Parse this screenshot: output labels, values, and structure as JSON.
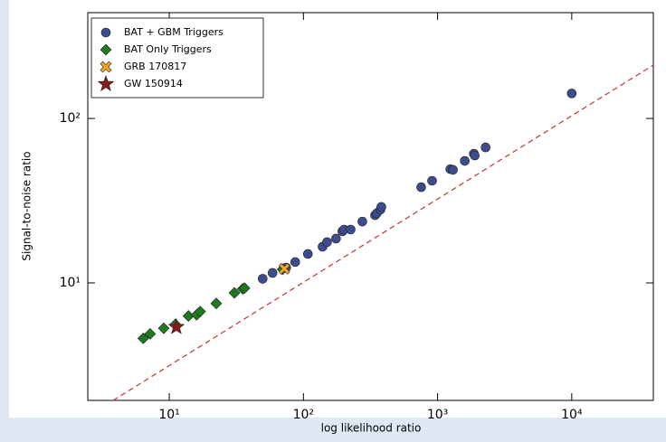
{
  "chart_data": {
    "type": "scatter",
    "x_label": "log likelihood ratio",
    "y_label": "Signal-to-noise ratio",
    "x_log": true,
    "y_log": true,
    "xlim": [
      2.47,
      40550
    ],
    "ylim": [
      1.93,
      440
    ],
    "xticks": [
      {
        "value": 10,
        "label": "10¹"
      },
      {
        "value": 100,
        "label": "10²"
      },
      {
        "value": 1000,
        "label": "10³"
      },
      {
        "value": 10000,
        "label": "10⁴"
      }
    ],
    "yticks": [
      {
        "value": 10,
        "label": "10¹"
      },
      {
        "value": 100,
        "label": "10²"
      }
    ],
    "legend": "upper left",
    "series": [
      {
        "name": "BAT + GBM Triggers",
        "color": "#3d4c8c",
        "marker": "circle",
        "x": [
          49.7,
          58.9,
          74.4,
          86.9,
          108,
          139,
          150,
          175,
          195,
          201,
          225,
          275,
          342,
          352,
          375,
          381,
          755,
          910,
          1244,
          1303,
          1595,
          1864,
          1893,
          2281,
          10000
        ],
        "values": [
          10.6,
          11.5,
          12.4,
          13.4,
          15.0,
          16.6,
          17.7,
          18.6,
          20.6,
          21.1,
          21.1,
          23.6,
          25.8,
          26.5,
          27.9,
          29.0,
          38.2,
          41.8,
          49.2,
          48.7,
          55.2,
          61.1,
          59.5,
          66.7,
          142
        ]
      },
      {
        "name": "BAT Only Triggers",
        "color": "#1f7a1f",
        "marker": "diamond",
        "x": [
          6.4,
          7.2,
          9.1,
          11.1,
          13.9,
          16.0,
          17.0,
          22.4,
          30.6,
          35.3,
          36.4,
          70
        ],
        "values": [
          4.6,
          4.9,
          5.3,
          5.6,
          6.3,
          6.4,
          6.7,
          7.5,
          8.7,
          9.2,
          9.3,
          12.1
        ]
      },
      {
        "name": "GRB 170817",
        "color": "#f5a623",
        "marker": "x",
        "x": [
          72.1
        ],
        "values": [
          12.2
        ]
      },
      {
        "name": "GW 150914",
        "color": "#8b1a1a",
        "marker": "star",
        "x": [
          11.3
        ],
        "values": [
          5.4
        ]
      }
    ]
  }
}
